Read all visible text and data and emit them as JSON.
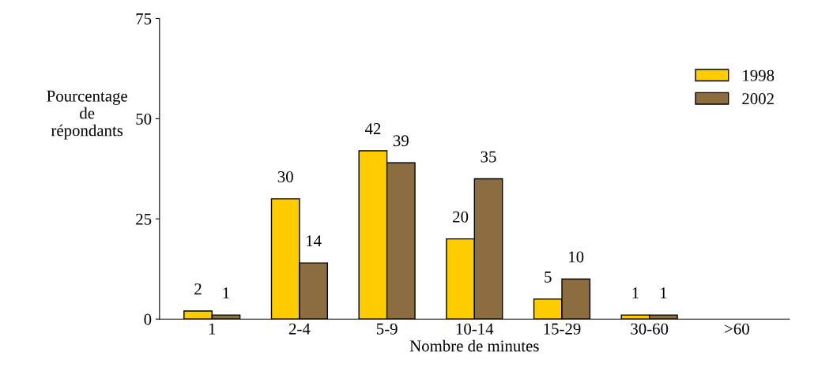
{
  "chart_data": {
    "type": "bar",
    "categories": [
      "1",
      "2-4",
      "5-9",
      "10-14",
      "15-29",
      "30-60",
      ">60"
    ],
    "series": [
      {
        "name": "1998",
        "color": "#ffcc00",
        "values": [
          2,
          30,
          42,
          20,
          5,
          1,
          null
        ]
      },
      {
        "name": "2002",
        "color": "#8c6d3f",
        "values": [
          1,
          14,
          39,
          35,
          10,
          1,
          null
        ]
      }
    ],
    "ylabel": "Pourcentage\nde\nrépondants",
    "xlabel": "Nombre de minutes",
    "ylim": [
      0,
      75
    ],
    "yticks": [
      0,
      25,
      50,
      75
    ],
    "grid": false,
    "legend": "top right",
    "data_labels": true
  }
}
